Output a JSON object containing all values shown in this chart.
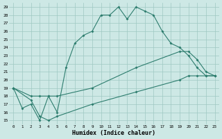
{
  "xlabel": "Humidex (Indice chaleur)",
  "bg_color": "#cde8e5",
  "line_color": "#2d7d6e",
  "grid_color": "#9fc8c2",
  "xlim": [
    -0.5,
    23.5
  ],
  "ylim": [
    14.5,
    29.5
  ],
  "xticks": [
    0,
    1,
    2,
    3,
    4,
    5,
    6,
    7,
    8,
    9,
    10,
    11,
    12,
    13,
    14,
    15,
    16,
    17,
    18,
    19,
    20,
    21,
    22,
    23
  ],
  "yticks": [
    15,
    16,
    17,
    18,
    19,
    20,
    21,
    22,
    23,
    24,
    25,
    26,
    27,
    28,
    29
  ],
  "curve1_x": [
    0,
    1,
    2,
    3,
    4,
    5,
    6,
    7,
    8,
    9,
    10,
    11,
    12,
    13,
    14,
    15,
    16,
    17,
    18,
    19,
    20,
    21,
    22,
    23
  ],
  "curve1_y": [
    19,
    16.5,
    17.0,
    15.0,
    18.0,
    16.0,
    21.5,
    24.5,
    25.5,
    26.0,
    28.0,
    28.0,
    29.0,
    27.5,
    29.0,
    28.5,
    28.0,
    26.0,
    24.5,
    24.0,
    23.0,
    21.5,
    20.5,
    20.5
  ],
  "curve2_x": [
    0,
    2,
    3,
    4,
    5,
    9,
    14,
    19,
    20,
    21,
    22,
    23
  ],
  "curve2_y": [
    19,
    18.0,
    18.0,
    18.0,
    18.0,
    19.0,
    21.5,
    23.5,
    23.5,
    22.5,
    21.0,
    20.5
  ],
  "curve3_x": [
    0,
    2,
    3,
    4,
    5,
    9,
    14,
    19,
    20,
    21,
    22,
    23
  ],
  "curve3_y": [
    19,
    17.5,
    15.5,
    15.0,
    15.5,
    17.0,
    18.5,
    20.0,
    20.5,
    20.5,
    20.5,
    20.5
  ]
}
